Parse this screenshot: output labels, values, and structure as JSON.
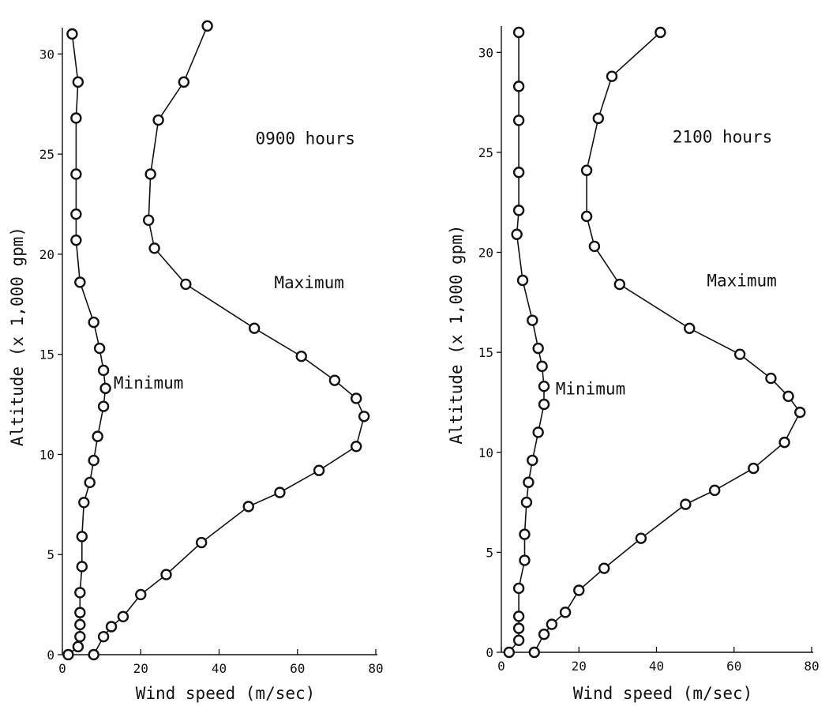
{
  "chart_data": [
    {
      "type": "line",
      "title": "",
      "xlabel": "Wind speed (m/sec)",
      "ylabel": "Altitude (x 1,000 gpm)",
      "xlim": [
        0,
        80
      ],
      "ylim": [
        0,
        31
      ],
      "xticks": [
        0,
        20,
        40,
        60,
        80
      ],
      "yticks": [
        0,
        5,
        10,
        15,
        20,
        25,
        30
      ],
      "grid": false,
      "annotations": [
        {
          "text": "0900 hours",
          "x": 62,
          "y": 25.5
        },
        {
          "text": "Maximum",
          "x": 63,
          "y": 18.3
        },
        {
          "text": "Minimum",
          "x": 22,
          "y": 13.3
        }
      ],
      "series": [
        {
          "name": "Minimum",
          "points": [
            [
              1.5,
              0
            ],
            [
              4,
              0.4
            ],
            [
              4.5,
              0.9
            ],
            [
              4.5,
              1.5
            ],
            [
              4.5,
              2.1
            ],
            [
              4.5,
              3.1
            ],
            [
              5,
              4.4
            ],
            [
              5,
              5.9
            ],
            [
              5.5,
              7.6
            ],
            [
              7,
              8.6
            ],
            [
              8,
              9.7
            ],
            [
              9,
              10.9
            ],
            [
              10.5,
              12.4
            ],
            [
              11,
              13.3
            ],
            [
              10.5,
              14.2
            ],
            [
              9.5,
              15.3
            ],
            [
              8,
              16.6
            ],
            [
              4.5,
              18.6
            ],
            [
              3.5,
              20.7
            ],
            [
              3.5,
              22
            ],
            [
              3.5,
              24
            ],
            [
              3.5,
              26.8
            ],
            [
              4,
              28.6
            ],
            [
              2.5,
              31
            ]
          ]
        },
        {
          "name": "Maximum",
          "points": [
            [
              8,
              0
            ],
            [
              10.5,
              0.9
            ],
            [
              12.5,
              1.4
            ],
            [
              15.5,
              1.9
            ],
            [
              20,
              3
            ],
            [
              26.5,
              4
            ],
            [
              35.5,
              5.6
            ],
            [
              47.5,
              7.4
            ],
            [
              55.5,
              8.1
            ],
            [
              65.5,
              9.2
            ],
            [
              75,
              10.4
            ],
            [
              77,
              11.9
            ],
            [
              75,
              12.8
            ],
            [
              69.5,
              13.7
            ],
            [
              61,
              14.9
            ],
            [
              49,
              16.3
            ],
            [
              31.5,
              18.5
            ],
            [
              23.5,
              20.3
            ],
            [
              22,
              21.7
            ],
            [
              22.5,
              24
            ],
            [
              24.5,
              26.7
            ],
            [
              31,
              28.6
            ],
            [
              37,
              31.4
            ]
          ]
        }
      ]
    },
    {
      "type": "line",
      "title": "",
      "xlabel": "Wind speed (m/sec)",
      "ylabel": "Altitude (x 1,000 gpm)",
      "xlim": [
        0,
        80
      ],
      "ylim": [
        0,
        31
      ],
      "xticks": [
        0,
        20,
        40,
        60,
        80
      ],
      "yticks": [
        0,
        5,
        10,
        15,
        20,
        25,
        30
      ],
      "grid": false,
      "annotations": [
        {
          "text": "2100 hours",
          "x": 57,
          "y": 25.5
        },
        {
          "text": "Maximum",
          "x": 62,
          "y": 18.3
        },
        {
          "text": "Minimum",
          "x": 23,
          "y": 12.9
        }
      ],
      "series": [
        {
          "name": "Minimum",
          "points": [
            [
              2,
              0
            ],
            [
              4.5,
              0.6
            ],
            [
              4.5,
              1.2
            ],
            [
              4.5,
              1.8
            ],
            [
              4.5,
              3.2
            ],
            [
              6,
              4.6
            ],
            [
              6,
              5.9
            ],
            [
              6.5,
              7.5
            ],
            [
              7,
              8.5
            ],
            [
              8,
              9.6
            ],
            [
              9.5,
              11
            ],
            [
              11,
              12.4
            ],
            [
              11,
              13.3
            ],
            [
              10.5,
              14.3
            ],
            [
              9.5,
              15.2
            ],
            [
              8,
              16.6
            ],
            [
              5.5,
              18.6
            ],
            [
              4,
              20.9
            ],
            [
              4.5,
              22.1
            ],
            [
              4.5,
              24
            ],
            [
              4.5,
              26.6
            ],
            [
              4.5,
              28.3
            ],
            [
              4.5,
              31
            ]
          ]
        },
        {
          "name": "Maximum",
          "points": [
            [
              8.5,
              0
            ],
            [
              11,
              0.9
            ],
            [
              13,
              1.4
            ],
            [
              16.5,
              2
            ],
            [
              20,
              3.1
            ],
            [
              26.5,
              4.2
            ],
            [
              36,
              5.7
            ],
            [
              47.5,
              7.4
            ],
            [
              55,
              8.1
            ],
            [
              65,
              9.2
            ],
            [
              73,
              10.5
            ],
            [
              77,
              12
            ],
            [
              74,
              12.8
            ],
            [
              69.5,
              13.7
            ],
            [
              61.5,
              14.9
            ],
            [
              48.5,
              16.2
            ],
            [
              30.5,
              18.4
            ],
            [
              24,
              20.3
            ],
            [
              22,
              21.8
            ],
            [
              22,
              24.1
            ],
            [
              25,
              26.7
            ],
            [
              28.5,
              28.8
            ],
            [
              41,
              31
            ]
          ]
        }
      ]
    }
  ]
}
